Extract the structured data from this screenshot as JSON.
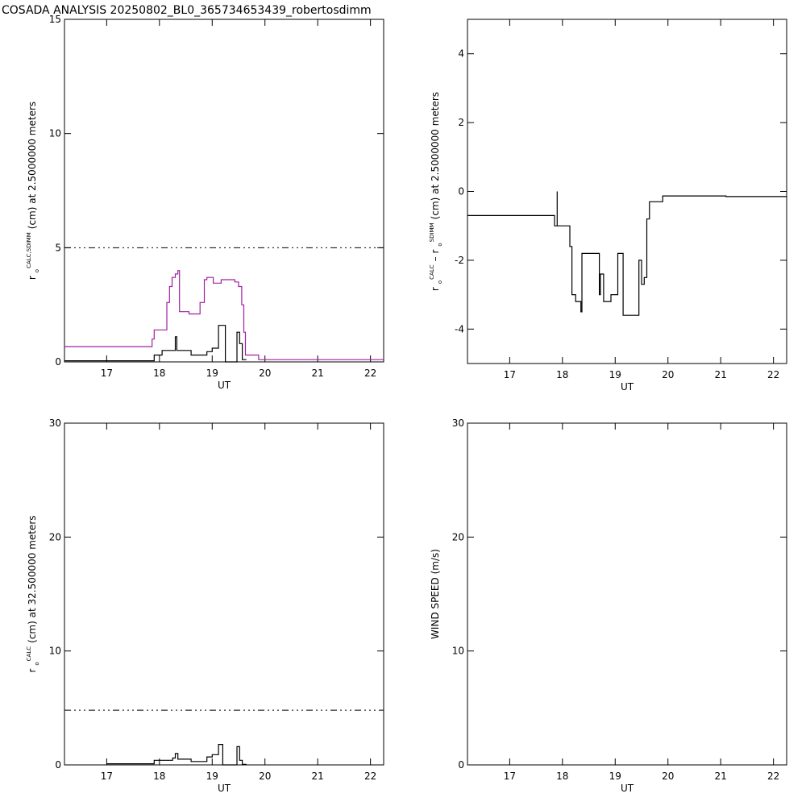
{
  "title": "COSADA ANALYSIS 20250802_BL0_365734653439_robertosdimm",
  "chart_data": [
    {
      "type": "line",
      "xlabel": "UT",
      "ylabel": [
        {
          "text": "r"
        },
        {
          "text": "o",
          "script": "sub"
        },
        {
          "text": "CALC,SDIMM",
          "script": "sup"
        },
        {
          "text": "(cm)  at  2.5000000 meters"
        }
      ],
      "xlim": [
        16.2,
        22.25
      ],
      "xticks": [
        17,
        18,
        19,
        20,
        21,
        22
      ],
      "ylim": [
        0,
        15
      ],
      "yticks": [
        0,
        5,
        10,
        15
      ],
      "hline": 5,
      "series": [
        {
          "color": "#a020a0",
          "x": [
            16.2,
            17.86,
            17.86,
            17.9,
            17.9,
            18.14,
            18.14,
            18.19,
            18.19,
            18.24,
            18.24,
            18.3,
            18.3,
            18.35,
            18.35,
            18.38,
            18.38,
            18.56,
            18.56,
            18.77,
            18.77,
            18.85,
            18.85,
            18.9,
            18.9,
            19.02,
            19.02,
            19.17,
            19.17,
            19.43,
            19.43,
            19.5,
            19.5,
            19.56,
            19.56,
            19.6,
            19.6,
            19.63,
            19.63,
            19.88,
            19.88,
            22.25
          ],
          "values": [
            0.67,
            0.67,
            1.0,
            1.0,
            1.4,
            1.4,
            2.6,
            2.6,
            3.3,
            3.3,
            3.7,
            3.7,
            3.85,
            3.85,
            4.0,
            4.0,
            2.2,
            2.2,
            2.1,
            2.1,
            2.6,
            2.6,
            3.6,
            3.6,
            3.7,
            3.7,
            3.45,
            3.45,
            3.6,
            3.6,
            3.5,
            3.5,
            3.3,
            3.3,
            2.5,
            2.5,
            1.3,
            1.3,
            0.3,
            0.3,
            0.1,
            0.1
          ]
        },
        {
          "color": "#000000",
          "x": [
            16.2,
            17.9,
            17.9,
            18.05,
            18.05,
            18.3,
            18.3,
            18.33,
            18.33,
            18.6,
            18.6,
            18.9,
            18.9,
            19.0,
            19.0,
            19.12,
            19.12,
            19.25,
            19.25,
            19.47,
            19.47,
            19.52,
            19.52,
            19.57,
            19.57,
            19.65
          ],
          "values": [
            0.05,
            0.05,
            0.3,
            0.3,
            0.5,
            0.5,
            1.1,
            1.1,
            0.5,
            0.5,
            0.3,
            0.3,
            0.45,
            0.45,
            0.6,
            0.6,
            1.6,
            1.6,
            0,
            0,
            1.3,
            1.3,
            0.8,
            0.8,
            0.1,
            0.1
          ]
        }
      ]
    },
    {
      "type": "line",
      "xlabel": "UT",
      "ylabel": [
        {
          "text": "r"
        },
        {
          "text": "o",
          "script": "sub"
        },
        {
          "text": "CALC",
          "script": "sup"
        },
        {
          "text": "–  r"
        },
        {
          "text": "o",
          "script": "sub"
        },
        {
          "text": "SDIMM",
          "script": "sup"
        },
        {
          "text": "(cm)  at  2.5000000 meters"
        }
      ],
      "xlim": [
        16.2,
        22.25
      ],
      "xticks": [
        17,
        18,
        19,
        20,
        21,
        22
      ],
      "ylim": [
        -5,
        5
      ],
      "yticks": [
        -4,
        -2,
        0,
        2,
        4
      ],
      "series": [
        {
          "color": "#000000",
          "x": [
            16.2,
            17.85,
            17.85,
            17.9,
            17.9,
            17.9,
            18.14,
            18.14,
            18.18,
            18.18,
            18.25,
            18.25,
            18.35,
            18.35,
            18.37,
            18.37,
            18.7,
            18.7,
            18.72,
            18.72,
            18.78,
            18.78,
            18.92,
            18.92,
            19.05,
            19.05,
            19.15,
            19.15,
            19.45,
            19.45,
            19.5,
            19.5,
            19.55,
            19.55,
            19.6,
            19.6,
            19.65,
            19.65,
            19.9,
            19.9,
            21.1,
            21.1,
            22.25
          ],
          "values": [
            -0.7,
            -0.7,
            -1.0,
            -1.0,
            0,
            -1.0,
            -1.0,
            -1.6,
            -1.6,
            -3.0,
            -3.0,
            -3.2,
            -3.2,
            -3.5,
            -3.5,
            -1.8,
            -1.8,
            -3.0,
            -3.0,
            -2.4,
            -2.4,
            -3.2,
            -3.2,
            -3.0,
            -3.0,
            -1.8,
            -1.8,
            -3.6,
            -3.6,
            -2.0,
            -2.0,
            -2.7,
            -2.7,
            -2.5,
            -2.5,
            -0.8,
            -0.8,
            -0.3,
            -0.3,
            -0.13,
            -0.13,
            -0.15,
            -0.15
          ]
        }
      ]
    },
    {
      "type": "line",
      "xlabel": "UT",
      "ylabel": [
        {
          "text": "r"
        },
        {
          "text": "o",
          "script": "sub"
        },
        {
          "text": "CALC",
          "script": "sup"
        },
        {
          "text": "(cm) at 32.500000 meters"
        }
      ],
      "xlim": [
        16.2,
        22.25
      ],
      "xticks": [
        17,
        18,
        19,
        20,
        21,
        22
      ],
      "ylim": [
        0,
        30
      ],
      "yticks": [
        0,
        10,
        20,
        30
      ],
      "hline": 4.8,
      "series": [
        {
          "color": "#000000",
          "x": [
            17.0,
            17.9,
            17.9,
            18.25,
            18.25,
            18.3,
            18.3,
            18.35,
            18.35,
            18.6,
            18.6,
            18.9,
            18.9,
            19.0,
            19.0,
            19.12,
            19.12,
            19.2,
            19.2,
            19.47,
            19.47,
            19.52,
            19.52,
            19.57,
            19.57,
            19.65
          ],
          "values": [
            0.1,
            0.1,
            0.4,
            0.4,
            0.6,
            0.6,
            1.0,
            1.0,
            0.5,
            0.5,
            0.3,
            0.3,
            0.7,
            0.7,
            0.9,
            0.9,
            1.8,
            1.8,
            0,
            0,
            1.6,
            1.6,
            0.4,
            0.4,
            0.05,
            0.05
          ]
        }
      ]
    },
    {
      "type": "line",
      "xlabel": "UT",
      "ylabel": [
        {
          "text": "WIND SPEED (m/s)"
        }
      ],
      "xlim": [
        16.2,
        22.25
      ],
      "xticks": [
        17,
        18,
        19,
        20,
        21,
        22
      ],
      "ylim": [
        0,
        30
      ],
      "yticks": [
        0,
        10,
        20,
        30
      ]
    }
  ]
}
